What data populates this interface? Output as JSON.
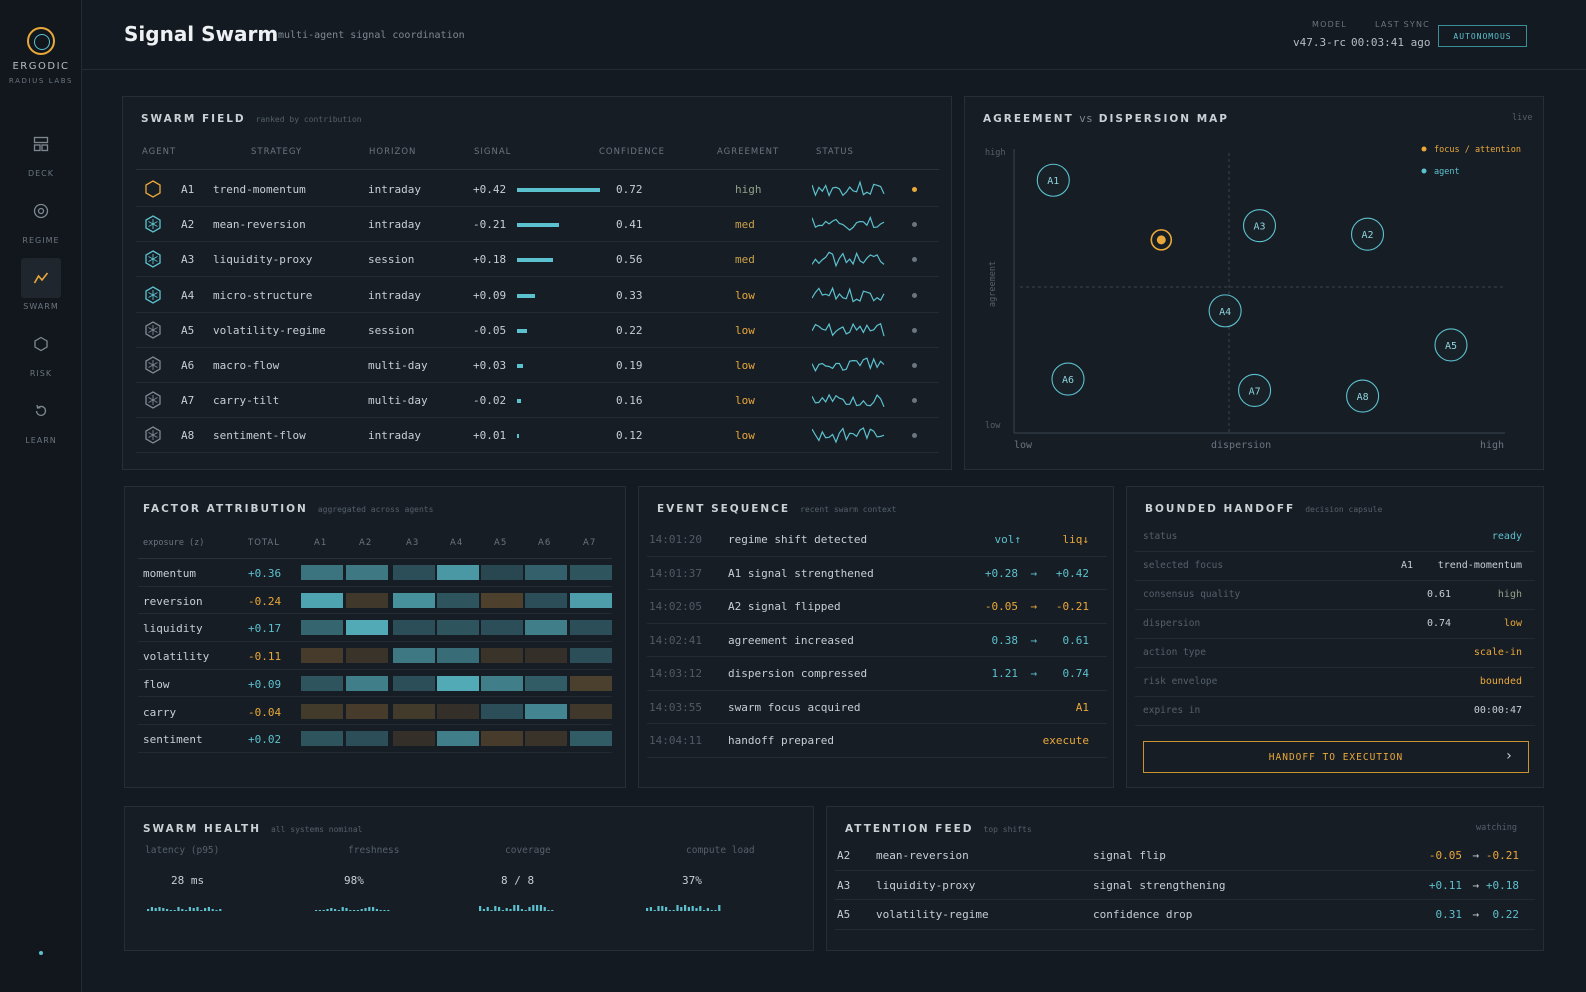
{
  "sidebar": {
    "brand": "ERGODIC",
    "brand_sub": "RADIUS LABS",
    "items": [
      {
        "label": "DECK",
        "icon": "grid-icon",
        "active": false
      },
      {
        "label": "REGIME",
        "icon": "target-icon",
        "active": false
      },
      {
        "label": "SWARM",
        "icon": "swarm-icon",
        "active": true
      },
      {
        "label": "RISK",
        "icon": "hexagon-icon",
        "active": false
      },
      {
        "label": "LEARN",
        "icon": "refresh-icon",
        "active": false
      }
    ]
  },
  "header": {
    "title": "Signal Swarm",
    "subtitle": "multi-agent signal coordination",
    "model_label": "MODEL",
    "model_value": "v47.3-rc",
    "sync_label": "LAST SYNC",
    "sync_value": "00:03:41 ago",
    "mode": "AUTONOMOUS"
  },
  "colors": {
    "accent": "#5cc1cf",
    "focus": "#e9a83a",
    "bg": "#141a21",
    "panel": "#171d24"
  },
  "swarm_field": {
    "title": "SWARM FIELD",
    "subtitle": "ranked by contribution",
    "columns": [
      "AGENT",
      "STRATEGY",
      "HORIZON",
      "SIGNAL",
      "CONFIDENCE",
      "AGREEMENT",
      "STATUS"
    ],
    "rows": [
      {
        "id": "A1",
        "strategy": "trend-momentum",
        "horizon": "intraday",
        "signal": "+0.42",
        "signal_value": 0.42,
        "confidence": "0.72",
        "agreement": "high",
        "focus": true
      },
      {
        "id": "A2",
        "strategy": "mean-reversion",
        "horizon": "intraday",
        "signal": "-0.21",
        "signal_value": -0.21,
        "confidence": "0.41",
        "agreement": "med",
        "focus": false
      },
      {
        "id": "A3",
        "strategy": "liquidity-proxy",
        "horizon": "session",
        "signal": "+0.18",
        "signal_value": 0.18,
        "confidence": "0.56",
        "agreement": "med",
        "focus": false
      },
      {
        "id": "A4",
        "strategy": "micro-structure",
        "horizon": "intraday",
        "signal": "+0.09",
        "signal_value": 0.09,
        "confidence": "0.33",
        "agreement": "low",
        "focus": false
      },
      {
        "id": "A5",
        "strategy": "volatility-regime",
        "horizon": "session",
        "signal": "-0.05",
        "signal_value": -0.05,
        "confidence": "0.22",
        "agreement": "low",
        "focus": false
      },
      {
        "id": "A6",
        "strategy": "macro-flow",
        "horizon": "multi-day",
        "signal": "+0.03",
        "signal_value": 0.03,
        "confidence": "0.19",
        "agreement": "low",
        "focus": false
      },
      {
        "id": "A7",
        "strategy": "carry-tilt",
        "horizon": "multi-day",
        "signal": "-0.02",
        "signal_value": -0.02,
        "confidence": "0.16",
        "agreement": "low",
        "focus": false
      },
      {
        "id": "A8",
        "strategy": "sentiment-flow",
        "horizon": "intraday",
        "signal": "+0.01",
        "signal_value": 0.01,
        "confidence": "0.12",
        "agreement": "low",
        "focus": false
      }
    ]
  },
  "map": {
    "title": "AGREEMENT",
    "title_vs": "vs",
    "title_rest": "DISPERSION MAP",
    "status": "live",
    "legend_focus": "focus / attention",
    "legend_agent": "agent",
    "y_label": "agreement",
    "x_label": "dispersion",
    "y_high": "high",
    "y_low": "low",
    "x_low": "low",
    "x_high": "high",
    "agents": [
      {
        "id": "A1",
        "dispersion": 0.08,
        "agreement": 0.89
      },
      {
        "id": "A2",
        "dispersion": 0.72,
        "agreement": 0.7
      },
      {
        "id": "A3",
        "dispersion": 0.5,
        "agreement": 0.73
      },
      {
        "id": "A4",
        "dispersion": 0.43,
        "agreement": 0.43
      },
      {
        "id": "A5",
        "dispersion": 0.89,
        "agreement": 0.31
      },
      {
        "id": "A6",
        "dispersion": 0.11,
        "agreement": 0.19
      },
      {
        "id": "A7",
        "dispersion": 0.49,
        "agreement": 0.15
      },
      {
        "id": "A8",
        "dispersion": 0.71,
        "agreement": 0.13
      }
    ],
    "focus": {
      "dispersion": 0.3,
      "agreement": 0.68
    }
  },
  "factor": {
    "title": "FACTOR ATTRIBUTION",
    "subtitle": "aggregated across agents",
    "col_exposure": "exposure (z)",
    "col_total": "TOTAL",
    "agents": [
      "A1",
      "A2",
      "A3",
      "A4",
      "A5",
      "A6",
      "A7"
    ],
    "rows": [
      {
        "name": "momentum",
        "total": "+0.36",
        "cells": [
          0.5,
          0.55,
          0.2,
          0.8,
          0.15,
          0.35,
          0.25
        ]
      },
      {
        "name": "reversion",
        "total": "-0.24",
        "cells": [
          0.9,
          -0.3,
          0.75,
          0.25,
          -0.5,
          0.2,
          0.85
        ]
      },
      {
        "name": "liquidity",
        "total": "+0.17",
        "cells": [
          0.4,
          0.95,
          0.2,
          0.25,
          0.2,
          0.6,
          0.2
        ]
      },
      {
        "name": "volatility",
        "total": "-0.11",
        "cells": [
          -0.4,
          -0.2,
          0.55,
          0.45,
          -0.2,
          -0.15,
          0.2
        ]
      },
      {
        "name": "flow",
        "total": "+0.09",
        "cells": [
          0.25,
          0.6,
          0.2,
          0.95,
          0.6,
          0.3,
          -0.45
        ]
      },
      {
        "name": "carry",
        "total": "-0.04",
        "cells": [
          -0.35,
          -0.4,
          -0.35,
          -0.15,
          0.2,
          0.65,
          -0.3
        ]
      },
      {
        "name": "sentiment",
        "total": "+0.02",
        "cells": [
          0.25,
          0.2,
          -0.15,
          0.6,
          -0.4,
          -0.2,
          0.3
        ]
      }
    ]
  },
  "events": {
    "title": "EVENT SEQUENCE",
    "subtitle": "recent swarm context",
    "rows": [
      {
        "time": "14:01:20",
        "text": "regime shift detected",
        "a": "vol↑",
        "b": "liq↓",
        "a_color": "cyan",
        "b_color": "amber"
      },
      {
        "time": "14:01:37",
        "text": "A1 signal strengthened",
        "a": "+0.28",
        "b": "+0.42",
        "a_color": "cyan",
        "b_color": "cyan"
      },
      {
        "time": "14:02:05",
        "text": "A2 signal flipped",
        "a": "-0.05",
        "b": "-0.21",
        "a_color": "amber",
        "b_color": "amber"
      },
      {
        "time": "14:02:41",
        "text": "agreement increased",
        "a": "0.38",
        "b": "0.61",
        "a_color": "cyan",
        "b_color": "cyan"
      },
      {
        "time": "14:03:12",
        "text": "dispersion compressed",
        "a": "1.21",
        "b": "0.74",
        "a_color": "cyan",
        "b_color": "cyan"
      },
      {
        "time": "14:03:55",
        "text": "swarm focus acquired",
        "a": "",
        "b": "A1",
        "a_color": "cyan",
        "b_color": "amber"
      },
      {
        "time": "14:04:11",
        "text": "handoff prepared",
        "a": "",
        "b": "execute",
        "a_color": "cyan",
        "b_color": "amber"
      }
    ]
  },
  "handoff": {
    "title": "BOUNDED HANDOFF",
    "subtitle": "decision capsule",
    "rows": [
      {
        "label": "status",
        "v1": "",
        "v2": "ready",
        "color": "cyan"
      },
      {
        "label": "selected focus",
        "v1": "A1",
        "v2": "trend-momentum",
        "color": "plain"
      },
      {
        "label": "consensus quality",
        "v1": "0.61",
        "v2": "high",
        "color": "green"
      },
      {
        "label": "dispersion",
        "v1": "0.74",
        "v2": "low",
        "color": "amber"
      },
      {
        "label": "action type",
        "v1": "",
        "v2": "scale-in",
        "color": "amber"
      },
      {
        "label": "risk envelope",
        "v1": "",
        "v2": "bounded",
        "color": "amber"
      },
      {
        "label": "expires in",
        "v1": "",
        "v2": "00:00:47",
        "color": "plain"
      }
    ],
    "button": "HANDOFF TO EXECUTION"
  },
  "health": {
    "title": "SWARM HEALTH",
    "subtitle": "all systems nominal",
    "metrics": [
      {
        "label": "latency (p95)",
        "value": "28 ms"
      },
      {
        "label": "freshness",
        "value": "98%"
      },
      {
        "label": "coverage",
        "value": "8 / 8"
      },
      {
        "label": "compute load",
        "value": "37%"
      }
    ]
  },
  "attention": {
    "title": "ATTENTION FEED",
    "subtitle": "top shifts",
    "status": "watching",
    "rows": [
      {
        "id": "A2",
        "strategy": "mean-reversion",
        "event": "signal flip",
        "from": "-0.05",
        "to": "-0.21",
        "color": "amber"
      },
      {
        "id": "A3",
        "strategy": "liquidity-proxy",
        "event": "signal strengthening",
        "from": "+0.11",
        "to": "+0.18",
        "color": "cyan"
      },
      {
        "id": "A5",
        "strategy": "volatility-regime",
        "event": "confidence drop",
        "from": "0.31",
        "to": "0.22",
        "color": "cyan"
      }
    ]
  }
}
